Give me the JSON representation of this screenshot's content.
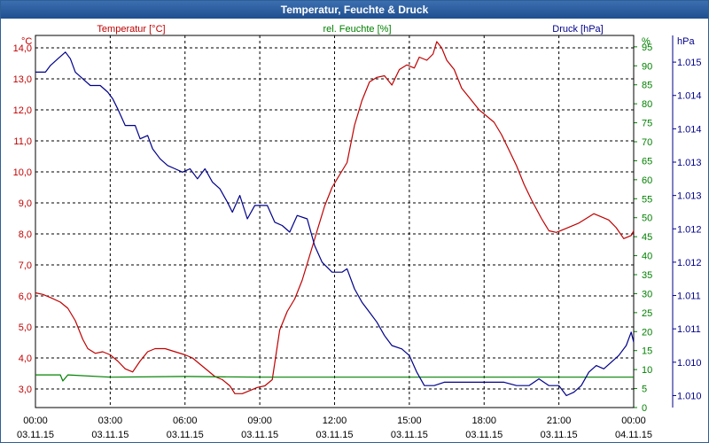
{
  "window": {
    "title": "Temperatur, Feuchte & Druck"
  },
  "colors": {
    "temperature": "#c00000",
    "humidity": "#008000",
    "pressure": "#00008b",
    "grid": "#000000",
    "axis_text": "#000000"
  },
  "chart_data": {
    "type": "line",
    "title": "Temperatur, Feuchte & Druck",
    "x": {
      "start_hours": 0,
      "end_hours": 24,
      "ticks": [
        {
          "h": 0,
          "time": "00:00",
          "date": "03.11.15"
        },
        {
          "h": 3,
          "time": "03:00",
          "date": "03.11.15"
        },
        {
          "h": 6,
          "time": "06:00",
          "date": "03.11.15"
        },
        {
          "h": 9,
          "time": "09:00",
          "date": "03.11.15"
        },
        {
          "h": 12,
          "time": "12:00",
          "date": "03.11.15"
        },
        {
          "h": 15,
          "time": "15:00",
          "date": "03.11.15"
        },
        {
          "h": 18,
          "time": "18:00",
          "date": "03.11.15"
        },
        {
          "h": 21,
          "time": "21:00",
          "date": "03.11.15"
        },
        {
          "h": 24,
          "time": "00:00",
          "date": "04.11.15"
        }
      ]
    },
    "axes": {
      "temperature": {
        "label": "Temperatur [°C]",
        "unit": "°C",
        "ylim": [
          2.4,
          14.4
        ],
        "ticks": [
          "3,0",
          "4,0",
          "5,0",
          "6,0",
          "7,0",
          "8,0",
          "9,0",
          "10,0",
          "11,0",
          "12,0",
          "13,0",
          "14,0"
        ],
        "tick_values": [
          3,
          4,
          5,
          6,
          7,
          8,
          9,
          10,
          11,
          12,
          13,
          14
        ]
      },
      "humidity": {
        "label": "rel. Feuchte [%]",
        "unit": "%",
        "ylim": [
          0,
          98
        ],
        "ticks": [
          "0",
          "5",
          "10",
          "15",
          "20",
          "25",
          "30",
          "35",
          "40",
          "45",
          "50",
          "55",
          "60",
          "65",
          "70",
          "75",
          "80",
          "85",
          "90",
          "95"
        ],
        "tick_values": [
          0,
          5,
          10,
          15,
          20,
          25,
          30,
          35,
          40,
          45,
          50,
          55,
          60,
          65,
          70,
          75,
          80,
          85,
          90,
          95
        ]
      },
      "pressure": {
        "label": "Druck [hPa]",
        "unit": "hPa",
        "ylim": [
          1009.82,
          1015.4
        ],
        "ticks": [
          "1.010",
          "1.010",
          "1.011",
          "1.011",
          "1.012",
          "1.012",
          "1.013",
          "1.013",
          "1.014",
          "1.014",
          "1.015"
        ],
        "tick_values": [
          1010.0,
          1010.5,
          1011.0,
          1011.5,
          1012.0,
          1012.5,
          1013.0,
          1013.5,
          1014.0,
          1014.5,
          1015.0
        ]
      }
    },
    "series": [
      {
        "name": "Temperatur [°C]",
        "axis": "temperature",
        "color": "#c00000",
        "points": [
          [
            0,
            6.1
          ],
          [
            0.3,
            6.05
          ],
          [
            0.6,
            5.95
          ],
          [
            1.0,
            5.8
          ],
          [
            1.3,
            5.6
          ],
          [
            1.6,
            5.2
          ],
          [
            1.9,
            4.6
          ],
          [
            2.1,
            4.3
          ],
          [
            2.4,
            4.15
          ],
          [
            2.7,
            4.2
          ],
          [
            3.0,
            4.1
          ],
          [
            3.3,
            3.9
          ],
          [
            3.6,
            3.65
          ],
          [
            3.9,
            3.55
          ],
          [
            4.2,
            3.9
          ],
          [
            4.5,
            4.2
          ],
          [
            4.8,
            4.3
          ],
          [
            5.2,
            4.3
          ],
          [
            5.6,
            4.2
          ],
          [
            6.0,
            4.1
          ],
          [
            6.3,
            4.0
          ],
          [
            6.6,
            3.8
          ],
          [
            6.9,
            3.6
          ],
          [
            7.2,
            3.4
          ],
          [
            7.5,
            3.3
          ],
          [
            7.8,
            3.1
          ],
          [
            8.0,
            2.85
          ],
          [
            8.3,
            2.85
          ],
          [
            8.6,
            2.95
          ],
          [
            8.9,
            3.05
          ],
          [
            9.2,
            3.1
          ],
          [
            9.5,
            3.3
          ],
          [
            9.8,
            4.9
          ],
          [
            10.1,
            5.5
          ],
          [
            10.4,
            5.9
          ],
          [
            10.7,
            6.5
          ],
          [
            11.0,
            7.3
          ],
          [
            11.3,
            8.1
          ],
          [
            11.6,
            8.9
          ],
          [
            11.9,
            9.5
          ],
          [
            12.2,
            9.9
          ],
          [
            12.5,
            10.3
          ],
          [
            12.8,
            11.5
          ],
          [
            13.1,
            12.3
          ],
          [
            13.4,
            12.9
          ],
          [
            13.7,
            13.05
          ],
          [
            14.0,
            13.1
          ],
          [
            14.3,
            12.8
          ],
          [
            14.6,
            13.3
          ],
          [
            14.9,
            13.45
          ],
          [
            15.2,
            13.35
          ],
          [
            15.4,
            13.7
          ],
          [
            15.7,
            13.6
          ],
          [
            15.95,
            13.8
          ],
          [
            16.1,
            14.2
          ],
          [
            16.3,
            14.0
          ],
          [
            16.5,
            13.6
          ],
          [
            16.8,
            13.3
          ],
          [
            17.1,
            12.7
          ],
          [
            17.4,
            12.4
          ],
          [
            17.8,
            12.0
          ],
          [
            18.1,
            11.8
          ],
          [
            18.4,
            11.6
          ],
          [
            18.7,
            11.2
          ],
          [
            19.0,
            10.7
          ],
          [
            19.3,
            10.2
          ],
          [
            19.6,
            9.6
          ],
          [
            19.9,
            9.1
          ],
          [
            20.3,
            8.5
          ],
          [
            20.6,
            8.1
          ],
          [
            20.9,
            8.05
          ],
          [
            21.2,
            8.15
          ],
          [
            21.5,
            8.25
          ],
          [
            21.8,
            8.35
          ],
          [
            22.1,
            8.5
          ],
          [
            22.4,
            8.65
          ],
          [
            22.7,
            8.55
          ],
          [
            23.0,
            8.45
          ],
          [
            23.3,
            8.2
          ],
          [
            23.6,
            7.85
          ],
          [
            23.9,
            7.95
          ],
          [
            24.0,
            8.1
          ]
        ]
      },
      {
        "name": "rel. Feuchte [%]",
        "axis": "humidity",
        "color": "#008000",
        "points": [
          [
            0,
            8.6
          ],
          [
            0.5,
            8.6
          ],
          [
            1.0,
            8.6
          ],
          [
            1.1,
            7.0
          ],
          [
            1.3,
            8.6
          ],
          [
            3,
            8.0
          ],
          [
            6,
            8.2
          ],
          [
            9,
            8.0
          ],
          [
            12,
            8.0
          ],
          [
            15,
            8.0
          ],
          [
            18,
            8.0
          ],
          [
            21,
            8.0
          ],
          [
            24,
            8.0
          ]
        ]
      },
      {
        "name": "Druck [hPa]",
        "axis": "pressure",
        "color": "#00008b",
        "points": [
          [
            0,
            1014.85
          ],
          [
            0.4,
            1014.85
          ],
          [
            0.6,
            1014.95
          ],
          [
            0.9,
            1015.05
          ],
          [
            1.2,
            1015.15
          ],
          [
            1.4,
            1015.05
          ],
          [
            1.6,
            1014.85
          ],
          [
            1.9,
            1014.75
          ],
          [
            2.2,
            1014.65
          ],
          [
            2.6,
            1014.65
          ],
          [
            2.9,
            1014.55
          ],
          [
            3.1,
            1014.45
          ],
          [
            3.3,
            1014.3
          ],
          [
            3.6,
            1014.05
          ],
          [
            4.0,
            1014.05
          ],
          [
            4.2,
            1013.85
          ],
          [
            4.5,
            1013.9
          ],
          [
            4.7,
            1013.7
          ],
          [
            5.0,
            1013.55
          ],
          [
            5.3,
            1013.45
          ],
          [
            5.6,
            1013.4
          ],
          [
            5.9,
            1013.35
          ],
          [
            6.2,
            1013.4
          ],
          [
            6.5,
            1013.25
          ],
          [
            6.8,
            1013.4
          ],
          [
            7.1,
            1013.2
          ],
          [
            7.4,
            1013.1
          ],
          [
            7.7,
            1012.9
          ],
          [
            7.9,
            1012.75
          ],
          [
            8.2,
            1013.0
          ],
          [
            8.5,
            1012.65
          ],
          [
            8.8,
            1012.85
          ],
          [
            9.3,
            1012.85
          ],
          [
            9.6,
            1012.6
          ],
          [
            9.9,
            1012.55
          ],
          [
            10.2,
            1012.45
          ],
          [
            10.5,
            1012.7
          ],
          [
            10.9,
            1012.65
          ],
          [
            11.2,
            1012.25
          ],
          [
            11.5,
            1012.0
          ],
          [
            11.9,
            1011.85
          ],
          [
            12.3,
            1011.85
          ],
          [
            12.5,
            1011.9
          ],
          [
            12.8,
            1011.6
          ],
          [
            13.1,
            1011.4
          ],
          [
            13.4,
            1011.25
          ],
          [
            13.7,
            1011.1
          ],
          [
            14.0,
            1010.9
          ],
          [
            14.3,
            1010.75
          ],
          [
            14.7,
            1010.7
          ],
          [
            15.0,
            1010.6
          ],
          [
            15.3,
            1010.35
          ],
          [
            15.6,
            1010.15
          ],
          [
            16.0,
            1010.15
          ],
          [
            16.4,
            1010.2
          ],
          [
            17.0,
            1010.2
          ],
          [
            17.6,
            1010.2
          ],
          [
            18.2,
            1010.2
          ],
          [
            18.8,
            1010.2
          ],
          [
            19.3,
            1010.15
          ],
          [
            19.8,
            1010.15
          ],
          [
            20.2,
            1010.25
          ],
          [
            20.6,
            1010.15
          ],
          [
            21.0,
            1010.15
          ],
          [
            21.3,
            1010.0
          ],
          [
            21.6,
            1010.05
          ],
          [
            21.9,
            1010.15
          ],
          [
            22.2,
            1010.35
          ],
          [
            22.5,
            1010.45
          ],
          [
            22.8,
            1010.4
          ],
          [
            23.1,
            1010.5
          ],
          [
            23.4,
            1010.6
          ],
          [
            23.7,
            1010.75
          ],
          [
            23.9,
            1010.95
          ],
          [
            24.0,
            1010.8
          ]
        ]
      }
    ]
  }
}
